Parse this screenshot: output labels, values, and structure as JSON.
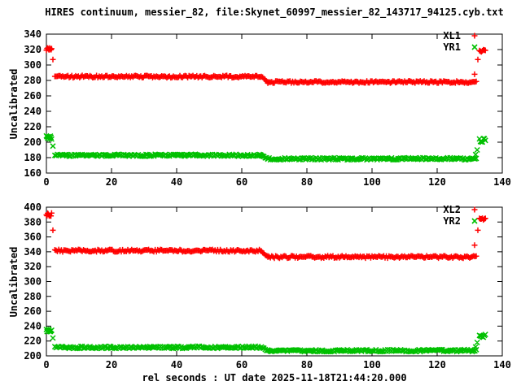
{
  "title": "HIRES continuum, messier_82, file:Skynet_60997_messier_82_143717_94125.cyb.txt",
  "xlabel": "rel seconds : UT date 2025-11-18T21:44:20.000",
  "colors": {
    "series1": "#ff0000",
    "series2": "#00c000",
    "axis": "#000000",
    "background": "#ffffff"
  },
  "chart_data": [
    {
      "panel": "top",
      "type": "scatter",
      "ylabel": "Uncalibrated",
      "ylim": [
        160,
        340
      ],
      "xlim": [
        0,
        140
      ],
      "yticks": [
        160,
        180,
        200,
        220,
        240,
        260,
        280,
        300,
        320,
        340
      ],
      "xticks": [
        0,
        20,
        40,
        60,
        80,
        100,
        120,
        140
      ],
      "grid": false,
      "legend_position": "top-right",
      "legend": [
        {
          "label": "XL1",
          "marker": "plus",
          "color": "#ff0000"
        },
        {
          "label": "YR1",
          "marker": "cross",
          "color": "#00c000"
        }
      ],
      "series": [
        {
          "name": "XL1",
          "color": "#ff0000",
          "marker": "plus",
          "segments": [
            {
              "x0": 0.0,
              "x1": 1.6,
              "y0": 321,
              "y1": 321,
              "jitter": 1.8,
              "step": 0.2
            },
            {
              "x0": 2.6,
              "x1": 66.0,
              "y0": 285,
              "y1": 285,
              "jitter": 1.4,
              "step": 0.4
            },
            {
              "x0": 66.0,
              "x1": 68.0,
              "y0": 285,
              "y1": 278,
              "jitter": 0.8,
              "step": 0.4
            },
            {
              "x0": 68.0,
              "x1": 132.0,
              "y0": 278,
              "y1": 278,
              "jitter": 1.4,
              "step": 0.4
            },
            {
              "x0": 133.0,
              "x1": 135.0,
              "y0": 318,
              "y1": 319,
              "jitter": 1.3,
              "step": 0.3
            }
          ],
          "points": [
            [
              2.0,
              307
            ],
            [
              131.5,
              288
            ],
            [
              132.5,
              307
            ]
          ]
        },
        {
          "name": "YR1",
          "color": "#00c000",
          "marker": "cross",
          "segments": [
            {
              "x0": 0.0,
              "x1": 1.6,
              "y0": 206,
              "y1": 206,
              "jitter": 2.4,
              "step": 0.2
            },
            {
              "x0": 2.6,
              "x1": 66.0,
              "y0": 183,
              "y1": 183,
              "jitter": 1.4,
              "step": 0.4
            },
            {
              "x0": 66.0,
              "x1": 68.0,
              "y0": 183,
              "y1": 178.5,
              "jitter": 0.8,
              "step": 0.4
            },
            {
              "x0": 68.0,
              "x1": 132.0,
              "y0": 178.5,
              "y1": 178.5,
              "jitter": 1.4,
              "step": 0.4
            },
            {
              "x0": 133.0,
              "x1": 135.0,
              "y0": 202,
              "y1": 203,
              "jitter": 2.5,
              "step": 0.3
            }
          ],
          "points": [
            [
              2.0,
              195
            ],
            [
              131.8,
              184
            ],
            [
              132.3,
              190
            ]
          ]
        }
      ]
    },
    {
      "panel": "bottom",
      "type": "scatter",
      "ylabel": "Uncalibrated",
      "ylim": [
        200,
        400
      ],
      "xlim": [
        0,
        140
      ],
      "yticks": [
        200,
        220,
        240,
        260,
        280,
        300,
        320,
        340,
        360,
        380,
        400
      ],
      "xticks": [
        0,
        20,
        40,
        60,
        80,
        100,
        120,
        140
      ],
      "grid": false,
      "legend_position": "top-right",
      "legend": [
        {
          "label": "XL2",
          "marker": "plus",
          "color": "#ff0000"
        },
        {
          "label": "YR2",
          "marker": "cross",
          "color": "#00c000"
        }
      ],
      "series": [
        {
          "name": "XL2",
          "color": "#ff0000",
          "marker": "plus",
          "segments": [
            {
              "x0": 0.0,
              "x1": 1.6,
              "y0": 390,
              "y1": 390,
              "jitter": 2.2,
              "step": 0.2
            },
            {
              "x0": 2.6,
              "x1": 66.0,
              "y0": 341.5,
              "y1": 341.5,
              "jitter": 1.6,
              "step": 0.4
            },
            {
              "x0": 66.0,
              "x1": 68.0,
              "y0": 341.5,
              "y1": 333,
              "jitter": 1.0,
              "step": 0.4
            },
            {
              "x0": 68.0,
              "x1": 132.0,
              "y0": 333,
              "y1": 333,
              "jitter": 1.6,
              "step": 0.4
            },
            {
              "x0": 133.0,
              "x1": 135.0,
              "y0": 384,
              "y1": 385,
              "jitter": 2.0,
              "step": 0.3
            }
          ],
          "points": [
            [
              2.0,
              369
            ],
            [
              131.5,
              349
            ],
            [
              132.5,
              369
            ]
          ]
        },
        {
          "name": "YR2",
          "color": "#00c000",
          "marker": "cross",
          "segments": [
            {
              "x0": 0.0,
              "x1": 1.6,
              "y0": 234,
              "y1": 234,
              "jitter": 2.6,
              "step": 0.2
            },
            {
              "x0": 2.6,
              "x1": 66.0,
              "y0": 211.5,
              "y1": 211.5,
              "jitter": 1.5,
              "step": 0.4
            },
            {
              "x0": 66.0,
              "x1": 68.0,
              "y0": 211.5,
              "y1": 207,
              "jitter": 0.8,
              "step": 0.4
            },
            {
              "x0": 68.0,
              "x1": 132.0,
              "y0": 207,
              "y1": 207,
              "jitter": 1.5,
              "step": 0.4
            },
            {
              "x0": 133.0,
              "x1": 135.0,
              "y0": 227,
              "y1": 228,
              "jitter": 2.6,
              "step": 0.3
            }
          ],
          "points": [
            [
              2.0,
              224
            ],
            [
              131.8,
              212
            ],
            [
              132.3,
              218
            ]
          ]
        }
      ]
    }
  ]
}
